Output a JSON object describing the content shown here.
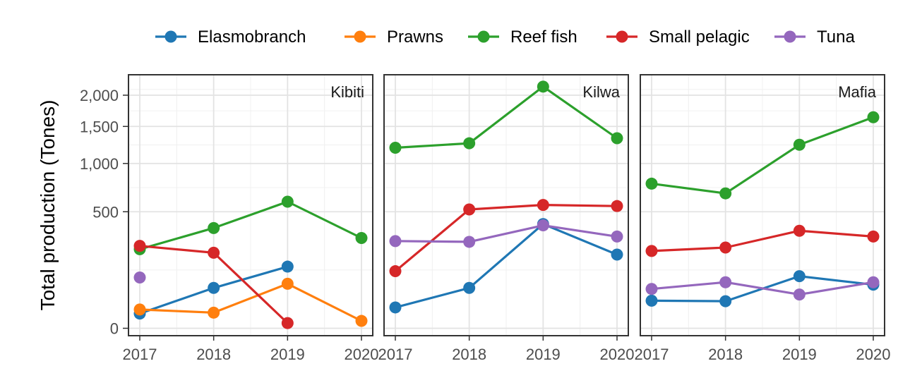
{
  "chart_data": {
    "type": "line",
    "ylabel": "Total production (Tones)",
    "xlabel": "",
    "x": [
      2017,
      2018,
      2019,
      2020
    ],
    "x_tick_labels": [
      "2017",
      "2018",
      "2019",
      "2020"
    ],
    "y_ticks": [
      0,
      500,
      1000,
      1500,
      2000
    ],
    "y_tick_labels": [
      "0",
      "500",
      "1,000",
      "1,500",
      "2,000"
    ],
    "y_scale": "sqrt",
    "ylim": [
      0,
      2200
    ],
    "grid": true,
    "legend_position": "top",
    "legend": [
      "Elasmobranch",
      "Prawns",
      "Reef fish",
      "Small pelagic",
      "Tuna"
    ],
    "colors": {
      "Elasmobranch": "#1f77b4",
      "Prawns": "#ff7f0e",
      "Reef fish": "#2ca02c",
      "Small pelagic": "#d62728",
      "Tuna": "#9467bd"
    },
    "panels": [
      {
        "title": "Kibiti",
        "series": [
          {
            "name": "Elasmobranch",
            "x": [
              2017,
              2018,
              2019
            ],
            "values": [
              8,
              60,
              140
            ]
          },
          {
            "name": "Prawns",
            "x": [
              2017,
              2018,
              2019,
              2020
            ],
            "values": [
              13,
              9,
              73,
              2
            ]
          },
          {
            "name": "Reef fish",
            "x": [
              2017,
              2018,
              2019,
              2020
            ],
            "values": [
              230,
              370,
              590,
              300
            ]
          },
          {
            "name": "Small pelagic",
            "x": [
              2017,
              2018,
              2019
            ],
            "values": [
              250,
              210,
              1
            ]
          },
          {
            "name": "Tuna",
            "x": [
              2017
            ],
            "values": [
              95
            ]
          }
        ]
      },
      {
        "title": "Kilwa",
        "series": [
          {
            "name": "Elasmobranch",
            "x": [
              2017,
              2018,
              2019,
              2020
            ],
            "values": [
              16,
              60,
              400,
              200
            ]
          },
          {
            "name": "Reef fish",
            "x": [
              2017,
              2018,
              2019,
              2020
            ],
            "values": [
              1200,
              1260,
              2150,
              1330
            ]
          },
          {
            "name": "Small pelagic",
            "x": [
              2017,
              2018,
              2019,
              2020
            ],
            "values": [
              120,
              520,
              560,
              550
            ]
          },
          {
            "name": "Tuna",
            "x": [
              2017,
              2018,
              2019,
              2020
            ],
            "values": [
              280,
              275,
              390,
              310
            ]
          }
        ]
      },
      {
        "title": "Mafia",
        "series": [
          {
            "name": "Elasmobranch",
            "x": [
              2017,
              2018,
              2019,
              2020
            ],
            "values": [
              28,
              27,
              100,
              70
            ]
          },
          {
            "name": "Reef fish",
            "x": [
              2017,
              2018,
              2019,
              2020
            ],
            "values": [
              770,
              670,
              1240,
              1640
            ]
          },
          {
            "name": "Small pelagic",
            "x": [
              2017,
              2018,
              2019,
              2020
            ],
            "values": [
              220,
              240,
              350,
              310
            ]
          },
          {
            "name": "Tuna",
            "x": [
              2017,
              2018,
              2019,
              2020
            ],
            "values": [
              57,
              78,
              42,
              78
            ]
          }
        ]
      }
    ]
  }
}
